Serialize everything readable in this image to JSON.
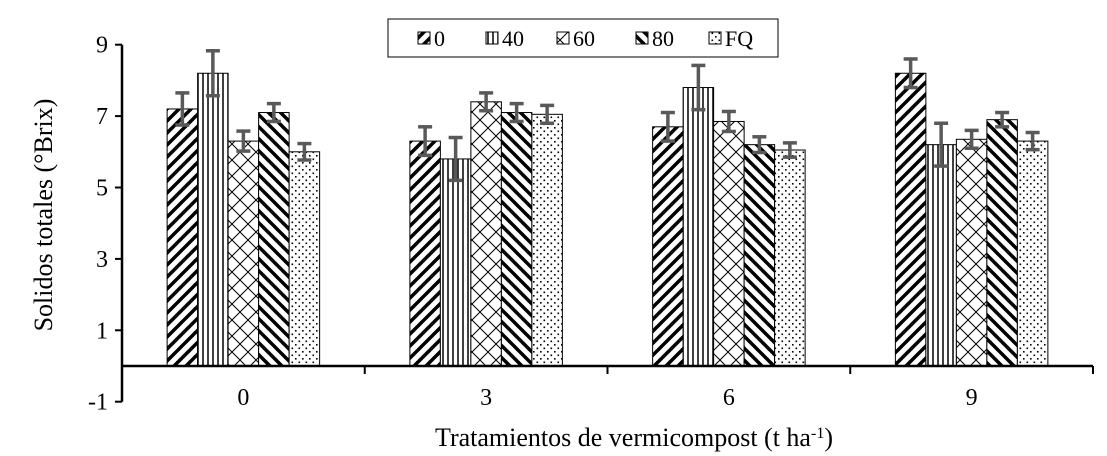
{
  "chart_data": {
    "type": "bar",
    "xlabel": "Tratamientos de vermicompost (t ha",
    "xlabel_sup": "-1",
    "xlabel_end": ")",
    "ylabel": "Solidos totales (°Brix)",
    "ylim": [
      -1,
      9
    ],
    "yticks": [
      "-1",
      "1",
      "3",
      "5",
      "7",
      "9"
    ],
    "categories": [
      "0",
      "3",
      "6",
      "9"
    ],
    "legend_position": "top-center",
    "grid": false,
    "series": [
      {
        "name": "0",
        "pattern": "diag-up",
        "values": [
          7.2,
          6.3,
          6.7,
          8.2
        ],
        "errors": [
          0.45,
          0.4,
          0.4,
          0.4
        ]
      },
      {
        "name": "40",
        "pattern": "vertical",
        "values": [
          8.2,
          5.8,
          7.8,
          6.2
        ],
        "errors": [
          0.63,
          0.6,
          0.62,
          0.6
        ]
      },
      {
        "name": "60",
        "pattern": "lattice",
        "values": [
          6.3,
          7.4,
          6.85,
          6.35
        ],
        "errors": [
          0.28,
          0.25,
          0.28,
          0.25
        ]
      },
      {
        "name": "80",
        "pattern": "diag-down",
        "values": [
          7.1,
          7.1,
          6.2,
          6.9
        ],
        "errors": [
          0.25,
          0.25,
          0.22,
          0.2
        ]
      },
      {
        "name": "FQ",
        "pattern": "dots",
        "values": [
          6.0,
          7.05,
          6.05,
          6.3
        ],
        "errors": [
          0.23,
          0.25,
          0.2,
          0.24
        ]
      }
    ],
    "error_bar_color": "#595959"
  }
}
